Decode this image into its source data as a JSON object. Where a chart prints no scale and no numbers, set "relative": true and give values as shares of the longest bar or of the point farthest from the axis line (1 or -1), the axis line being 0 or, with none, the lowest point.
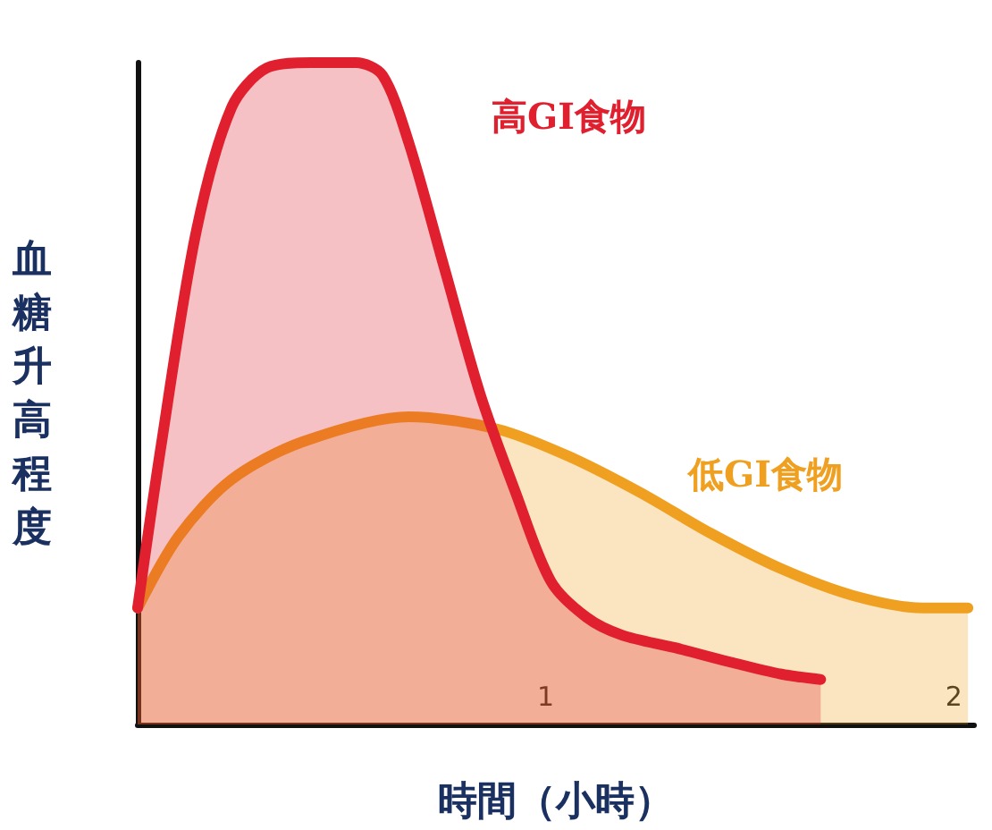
{
  "chart_data": {
    "type": "area",
    "relative": true,
    "xlabel": "時間（小時）",
    "ylabel": "血糖升高程度",
    "xlim": [
      0,
      2.05
    ],
    "xticks": [
      1,
      2
    ],
    "grid": false,
    "legend": false,
    "marker": "none",
    "line_style": "solid",
    "series": [
      {
        "name": "高GI食物",
        "color": "#e0202e",
        "x": [
          0,
          0.057,
          0.143,
          0.23,
          0.317,
          0.426,
          0.535,
          0.6,
          0.665,
          0.752,
          0.839,
          0.926,
          1.013,
          1.1,
          1.187,
          1.317,
          1.448,
          1.578,
          1.674
        ],
        "values": [
          0.176,
          0.419,
          0.743,
          0.932,
          0.992,
          1,
          1,
          0.981,
          0.878,
          0.689,
          0.5,
          0.351,
          0.216,
          0.162,
          0.135,
          0.116,
          0.095,
          0.076,
          0.068
        ]
      },
      {
        "name": "低GI食物",
        "color": "#f0a020",
        "x": [
          0,
          0.1,
          0.23,
          0.404,
          0.665,
          0.883,
          1.057,
          1.23,
          1.404,
          1.578,
          1.752,
          1.926,
          2.035
        ],
        "values": [
          0.176,
          0.284,
          0.37,
          0.427,
          0.465,
          0.446,
          0.405,
          0.351,
          0.289,
          0.235,
          0.195,
          0.176,
          0.176
        ]
      }
    ]
  }
}
